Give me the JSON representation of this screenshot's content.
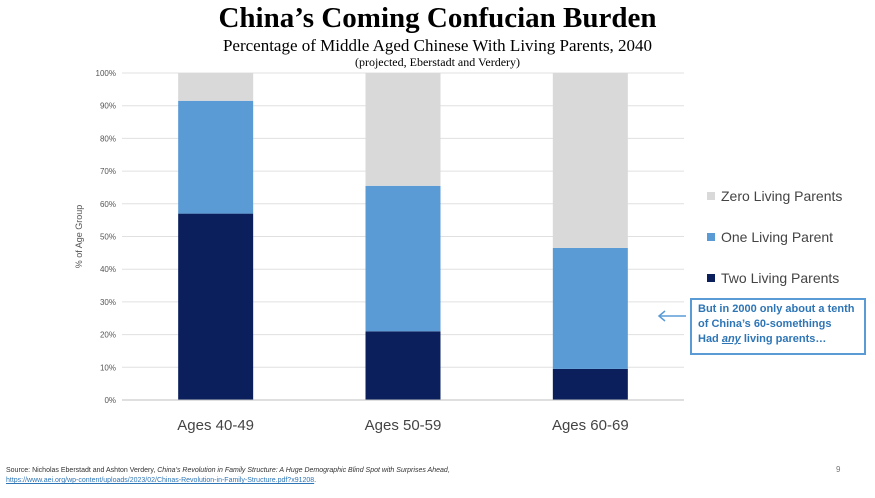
{
  "title": "China’s Coming Confucian Burden",
  "subtitle": "Percentage of Middle Aged Chinese With Living Parents, 2040",
  "note": "(projected, Eberstadt and Verdery)",
  "chart_data": {
    "type": "bar",
    "stacked": true,
    "categories": [
      "Ages 40-49",
      "Ages 50-59",
      "Ages 60-69"
    ],
    "series": [
      {
        "name": "Two Living Parents",
        "values": [
          57,
          21,
          9.5
        ],
        "color": "#0b1f5c"
      },
      {
        "name": "One Living Parent",
        "values": [
          34.5,
          44.5,
          37
        ],
        "color": "#5b9bd5"
      },
      {
        "name": "Zero Living Parents",
        "values": [
          8.5,
          34.5,
          53.5
        ],
        "color": "#d9d9d9"
      }
    ],
    "ylabel": "% of Age Group",
    "ylim": [
      0,
      100
    ],
    "yticks": [
      "0%",
      "10%",
      "20%",
      "30%",
      "40%",
      "50%",
      "60%",
      "70%",
      "80%",
      "90%",
      "100%"
    ],
    "grid": true,
    "legend_position": "right"
  },
  "legend": [
    {
      "label": "Zero Living Parents",
      "color": "#d9d9d9"
    },
    {
      "label": "One Living Parent",
      "color": "#5b9bd5"
    },
    {
      "label": "Two Living Parents",
      "color": "#0b1f5c"
    }
  ],
  "callout": {
    "line1": "But in 2000 only about a tenth",
    "line2": "of China’s 60-somethings",
    "line3_pre": "Had ",
    "line3_em": "any",
    "line3_post": " living parents…"
  },
  "source": {
    "prefix": "Source: Nicholas Eberstadt and Ashton Verdery, ",
    "work": "China’s Revolution in Family Structure: A Huge Demographic Blind Spot with Surprises Ahead",
    "sep": ", ",
    "url": "https://www.aei.org/wp-content/uploads/2023/02/Chinas-Revolution-in-Family-Structure.pdf?x91208",
    "end": "."
  },
  "page_number": "9"
}
